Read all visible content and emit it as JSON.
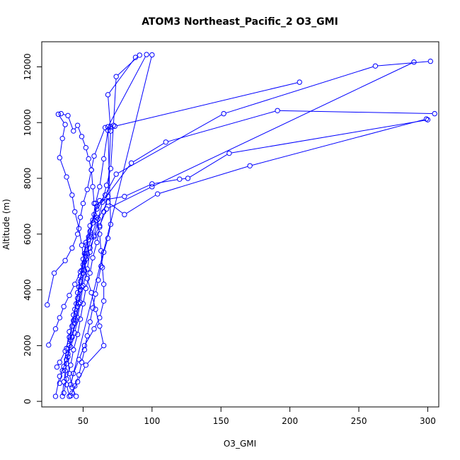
{
  "chart_data": {
    "type": "line",
    "title": "ATOM3 Northeast_Pacific_2 O3_GMI",
    "xlabel": "O3_GMI",
    "ylabel": "Altitude (m)",
    "xlim": [
      20,
      308
    ],
    "ylim": [
      -200,
      12900
    ],
    "x_ticks": [
      50,
      100,
      150,
      200,
      250,
      300
    ],
    "y_ticks": [
      0,
      2000,
      4000,
      6000,
      8000,
      10000,
      12000
    ],
    "marker": "open-circle",
    "color": "#0000ff",
    "series": [
      {
        "points": [
          [
            30,
            180
          ],
          [
            33,
            900
          ],
          [
            36,
            1250
          ],
          [
            38,
            1900
          ],
          [
            40,
            2500
          ],
          [
            43,
            3100
          ],
          [
            46,
            3700
          ],
          [
            48,
            4300
          ],
          [
            50,
            4900
          ],
          [
            52,
            5600
          ],
          [
            55,
            6100
          ],
          [
            58,
            6700
          ],
          [
            62,
            7200
          ],
          [
            80,
            7350
          ],
          [
            100,
            7800
          ],
          [
            120,
            7970
          ],
          [
            126,
            8000
          ],
          [
            156,
            8900
          ],
          [
            300,
            10100
          ]
        ]
      },
      {
        "points": [
          [
            35,
            180
          ],
          [
            36,
            700
          ],
          [
            38,
            1350
          ],
          [
            40,
            2000
          ],
          [
            42,
            2700
          ],
          [
            44,
            3300
          ],
          [
            46,
            3900
          ],
          [
            48,
            4500
          ],
          [
            50,
            5100
          ],
          [
            52,
            5700
          ],
          [
            55,
            6300
          ],
          [
            60,
            6900
          ],
          [
            85,
            8550
          ],
          [
            110,
            9300
          ],
          [
            191,
            10430
          ],
          [
            305,
            10320
          ]
        ]
      },
      {
        "points": [
          [
            40,
            180
          ],
          [
            38,
            600
          ],
          [
            37,
            1100
          ],
          [
            39,
            1700
          ],
          [
            42,
            2300
          ],
          [
            45,
            2900
          ],
          [
            47,
            3500
          ],
          [
            49,
            4100
          ],
          [
            51,
            4700
          ],
          [
            53,
            5300
          ],
          [
            56,
            5900
          ],
          [
            60,
            6500
          ],
          [
            68,
            7150
          ],
          [
            80,
            6700
          ],
          [
            104,
            7440
          ],
          [
            171,
            8450
          ],
          [
            299,
            10130
          ]
        ]
      },
      {
        "points": [
          [
            45,
            180
          ],
          [
            42,
            500
          ],
          [
            40,
            1000
          ],
          [
            39,
            1600
          ],
          [
            41,
            2200
          ],
          [
            44,
            2800
          ],
          [
            46,
            3400
          ],
          [
            48,
            4000
          ],
          [
            50,
            4600
          ],
          [
            52,
            5200
          ],
          [
            54,
            5800
          ],
          [
            57,
            6400
          ],
          [
            60,
            7000
          ],
          [
            66,
            7400
          ],
          [
            74,
            8150
          ],
          [
            152,
            10320
          ],
          [
            262,
            12030
          ],
          [
            302,
            12200
          ]
        ]
      },
      {
        "points": [
          [
            25,
            2020
          ],
          [
            30,
            2600
          ],
          [
            33,
            3000
          ],
          [
            36,
            3400
          ],
          [
            40,
            3800
          ],
          [
            44,
            4200
          ],
          [
            48,
            4650
          ],
          [
            52,
            5100
          ],
          [
            55,
            5500
          ],
          [
            58,
            5900
          ],
          [
            62,
            6300
          ],
          [
            67,
            6900
          ],
          [
            100,
            7700
          ],
          [
            290,
            12170
          ]
        ]
      },
      {
        "points": [
          [
            24,
            3460
          ],
          [
            29,
            4600
          ],
          [
            37,
            5050
          ],
          [
            42,
            5500
          ],
          [
            46,
            6000
          ],
          [
            48,
            6600
          ],
          [
            50,
            7100
          ],
          [
            53,
            7600
          ],
          [
            56,
            8300
          ],
          [
            58,
            8800
          ],
          [
            66,
            9820
          ],
          [
            73,
            9870
          ],
          [
            207,
            11450
          ]
        ]
      },
      {
        "points": [
          [
            31,
            1230
          ],
          [
            33,
            1400
          ],
          [
            37,
            1800
          ],
          [
            40,
            2300
          ],
          [
            43,
            2900
          ],
          [
            45,
            3500
          ],
          [
            47,
            4100
          ],
          [
            49,
            4700
          ],
          [
            51,
            5300
          ],
          [
            54,
            5900
          ],
          [
            57,
            6500
          ],
          [
            59,
            7100
          ],
          [
            62,
            7700
          ],
          [
            65,
            8700
          ],
          [
            68,
            9720
          ],
          [
            70,
            9850
          ]
        ]
      },
      {
        "points": [
          [
            33,
            650
          ],
          [
            35,
            1100
          ],
          [
            38,
            1500
          ],
          [
            41,
            1950
          ],
          [
            44,
            2450
          ],
          [
            46,
            3000
          ],
          [
            48,
            3550
          ],
          [
            50,
            4150
          ],
          [
            53,
            4750
          ],
          [
            55,
            5350
          ],
          [
            58,
            5950
          ],
          [
            61,
            6550
          ],
          [
            64,
            7150
          ],
          [
            67,
            7750
          ],
          [
            70,
            8350
          ],
          [
            72,
            9900
          ],
          [
            74,
            11650
          ],
          [
            91,
            12420
          ]
        ]
      },
      {
        "points": [
          [
            36,
            300
          ],
          [
            38,
            800
          ],
          [
            41,
            1300
          ],
          [
            43,
            1850
          ],
          [
            46,
            2400
          ],
          [
            48,
            2950
          ],
          [
            50,
            3500
          ],
          [
            52,
            4050
          ],
          [
            55,
            4600
          ],
          [
            57,
            5150
          ],
          [
            60,
            5700
          ],
          [
            62,
            6250
          ],
          [
            65,
            6800
          ],
          [
            68,
            7350
          ],
          [
            70,
            9700
          ],
          [
            68,
            11000
          ],
          [
            88,
            12340
          ]
        ]
      },
      {
        "points": [
          [
            41,
            200
          ],
          [
            44,
            550
          ],
          [
            47,
            950
          ],
          [
            49,
            1400
          ],
          [
            51,
            1850
          ],
          [
            53,
            2350
          ],
          [
            55,
            2850
          ],
          [
            57,
            3350
          ],
          [
            59,
            3850
          ],
          [
            61,
            4350
          ],
          [
            63,
            4850
          ],
          [
            65,
            5350
          ],
          [
            68,
            5850
          ],
          [
            70,
            6350
          ],
          [
            68,
            9850
          ],
          [
            96,
            12440
          ]
        ]
      },
      {
        "points": [
          [
            32,
            10300
          ],
          [
            37,
            9930
          ],
          [
            35,
            9430
          ],
          [
            33,
            8740
          ],
          [
            38,
            8050
          ],
          [
            42,
            7400
          ],
          [
            44,
            6800
          ],
          [
            47,
            6200
          ],
          [
            49,
            5600
          ],
          [
            51,
            5000
          ],
          [
            53,
            4400
          ],
          [
            56,
            3900
          ],
          [
            59,
            3300
          ],
          [
            62,
            2700
          ],
          [
            65,
            2000
          ],
          [
            52,
            1300
          ],
          [
            46,
            700
          ],
          [
            42,
            300
          ]
        ]
      },
      {
        "points": [
          [
            34,
            10320
          ],
          [
            39,
            10250
          ],
          [
            43,
            9700
          ],
          [
            46,
            9900
          ],
          [
            49,
            9500
          ],
          [
            52,
            9100
          ],
          [
            54,
            8700
          ],
          [
            56,
            8300
          ],
          [
            57,
            7700
          ],
          [
            58,
            7100
          ],
          [
            60,
            6600
          ],
          [
            62,
            6000
          ],
          [
            63,
            5400
          ],
          [
            64,
            4800
          ],
          [
            65,
            4200
          ],
          [
            65,
            3600
          ],
          [
            62,
            3000
          ],
          [
            58,
            2600
          ],
          [
            51,
            2000
          ],
          [
            47,
            1500
          ],
          [
            43,
            1000
          ],
          [
            41,
            600
          ],
          [
            100,
            12430
          ]
        ]
      }
    ]
  }
}
